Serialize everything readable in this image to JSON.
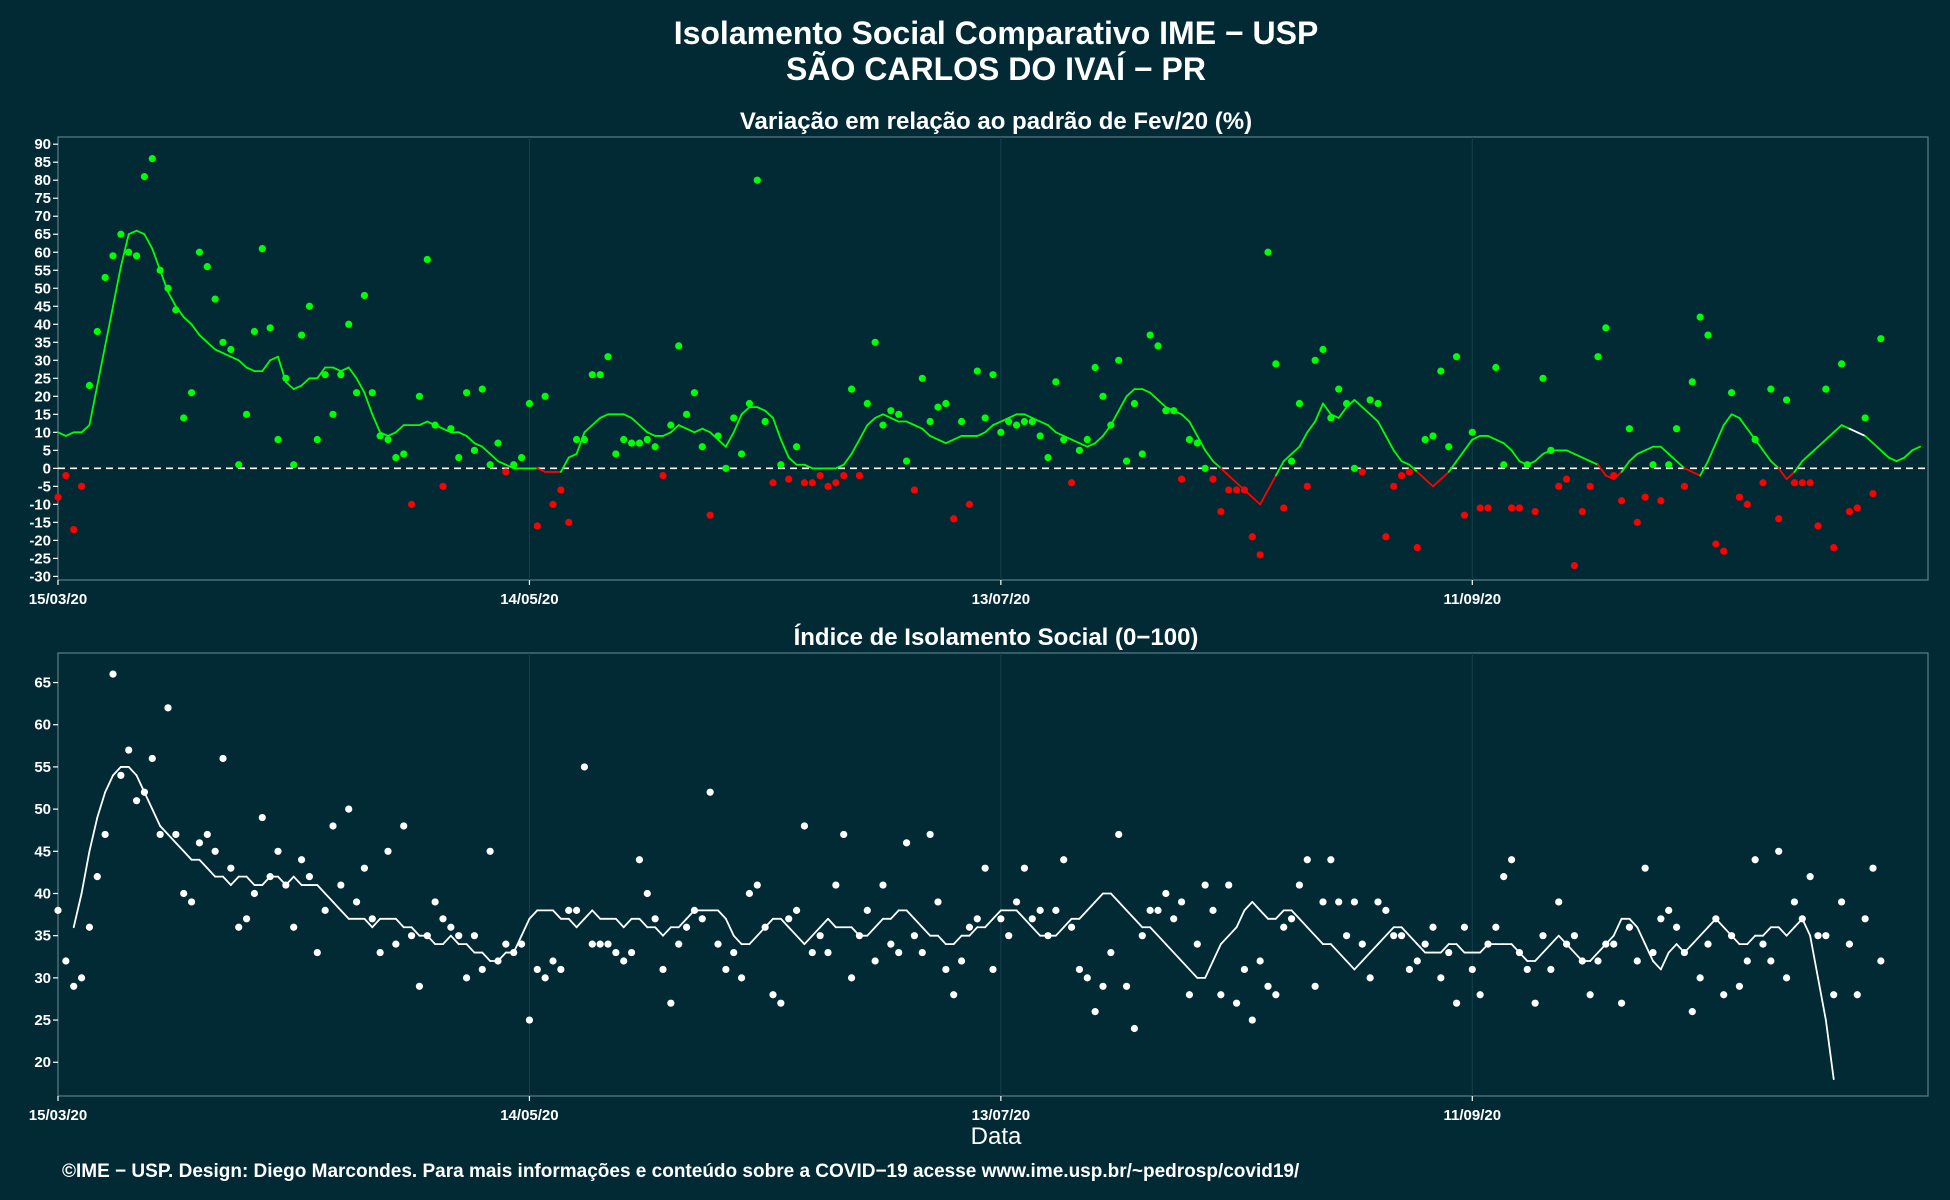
{
  "title_line1": "Isolamento Social Comparativo IME − USP",
  "title_line2": "SÃO CARLOS DO IVAÍ − PR",
  "footer": "©IME − USP. Design: Diego Marcondes. Para mais informações e conteúdo sobre a COVID−19 acesse www.ime.usp.br/~pedrosp/covid19/",
  "colors": {
    "background": "#022a35",
    "positive": "#00ff00",
    "negative": "#ff0000",
    "index": "#ffffff"
  },
  "chart_data": [
    {
      "type": "scatter",
      "title": "Variação em relação ao padrão de Fev/20 (%)",
      "xlabel": "",
      "ylabel": "",
      "x_ticks": [
        "15/03/20",
        "14/05/20",
        "13/07/20",
        "11/09/20"
      ],
      "y_ticks": [
        90,
        85,
        80,
        75,
        70,
        65,
        60,
        55,
        50,
        45,
        40,
        35,
        30,
        25,
        20,
        15,
        10,
        5,
        0,
        -5,
        -10,
        -15,
        -20,
        -25,
        -30
      ],
      "xlim": [
        "2020-03-15",
        "2020-11-08"
      ],
      "ylim": [
        -31,
        92
      ],
      "reference_line": 0,
      "x_start": "2020-03-15",
      "points_daily": [
        -8,
        -2,
        -17,
        -5,
        23,
        38,
        53,
        59,
        65,
        60,
        59,
        81,
        86,
        55,
        50,
        44,
        14,
        21,
        60,
        56,
        47,
        35,
        33,
        1,
        15,
        38,
        61,
        39,
        8,
        25,
        1,
        37,
        45,
        8,
        26,
        15,
        26,
        40,
        21,
        48,
        21,
        9,
        8,
        3,
        4,
        -10,
        20,
        58,
        12,
        -5,
        11,
        3,
        21,
        5,
        22,
        1,
        7,
        -1,
        1,
        3,
        18,
        -16,
        20,
        -10,
        -6,
        -15,
        8,
        8,
        26,
        26,
        31,
        4,
        8,
        7,
        7,
        8,
        6,
        -2,
        12,
        34,
        15,
        21,
        6,
        -13,
        9,
        0,
        14,
        4,
        18,
        80,
        13,
        -4,
        1,
        -3,
        6,
        -4,
        -4,
        -2,
        -5,
        -4,
        -2,
        22,
        -2,
        18,
        35,
        12,
        16,
        15,
        2,
        -6,
        25,
        13,
        17,
        18,
        -14,
        13,
        -10,
        27,
        14,
        26,
        10,
        13,
        12,
        13,
        13,
        9,
        3,
        24,
        8,
        -4,
        5,
        8,
        28,
        20,
        12,
        30,
        2,
        18,
        4,
        37,
        34,
        16,
        16,
        -3,
        8,
        7,
        0,
        -3,
        -12,
        -6,
        -6,
        -6,
        -19,
        -24,
        60,
        29,
        -11,
        2,
        18,
        -5,
        30,
        33,
        14,
        22,
        18,
        0,
        -1,
        19,
        18,
        -19,
        -5,
        -2,
        -1,
        -22,
        8,
        9,
        27,
        6,
        31,
        -13,
        10,
        -11,
        -11,
        28,
        1,
        -11,
        -11,
        1,
        -12,
        25,
        5,
        -5,
        -3,
        -27,
        -12,
        -5,
        31,
        39,
        -2,
        -9,
        11,
        -15,
        -8,
        1,
        -9,
        1,
        11,
        -5,
        24,
        42,
        37,
        -21,
        -23,
        21,
        -8,
        -10,
        8,
        -4,
        22,
        -14,
        19,
        -4,
        -4,
        -4,
        -16,
        22,
        -22,
        29,
        -12,
        -11,
        14,
        -7,
        36
      ],
      "moving_average": {
        "start": "2020-03-15",
        "values": [
          10,
          9,
          10,
          10,
          12,
          23,
          34,
          45,
          56,
          65,
          66,
          65,
          61,
          55,
          49,
          45,
          42,
          40,
          37,
          35,
          33,
          32,
          31,
          30,
          28,
          27,
          27,
          30,
          31,
          24,
          22,
          23,
          25,
          25,
          28,
          28,
          27,
          28,
          25,
          21,
          15,
          10,
          9,
          10,
          12,
          12,
          12,
          13,
          12,
          11,
          10,
          10,
          9,
          7,
          6,
          4,
          2,
          1,
          0,
          0,
          0,
          0,
          -1,
          -1,
          -1,
          3,
          4,
          10,
          12,
          14,
          15,
          15,
          15,
          14,
          12,
          10,
          9,
          9,
          10,
          12,
          11,
          10,
          11,
          10,
          8,
          6,
          10,
          15,
          17,
          17,
          16,
          14,
          8,
          3,
          1,
          1,
          0,
          0,
          0,
          0,
          1,
          4,
          8,
          12,
          14,
          15,
          14,
          13,
          13,
          12,
          11,
          9,
          8,
          7,
          8,
          9,
          9,
          9,
          10,
          12,
          13,
          14,
          15,
          15,
          14,
          13,
          12,
          10,
          9,
          8,
          7,
          6,
          7,
          9,
          12,
          16,
          20,
          22,
          22,
          21,
          19,
          17,
          16,
          15,
          13,
          9,
          5,
          2,
          0,
          -2,
          -4,
          -6,
          -8,
          -10,
          -6,
          -2,
          2,
          4,
          6,
          10,
          13,
          18,
          15,
          14,
          17,
          19,
          17,
          15,
          13,
          9,
          5,
          2,
          1,
          -1,
          -3,
          -5,
          -3,
          -1,
          2,
          5,
          8,
          9,
          9,
          8,
          7,
          5,
          2,
          1,
          2,
          4,
          5,
          5,
          5,
          4,
          3,
          2,
          1,
          -2,
          -3,
          -1,
          2,
          4,
          5,
          6,
          6,
          4,
          2,
          0,
          -1,
          -2,
          2,
          7,
          12,
          15,
          14,
          11,
          8,
          5,
          2,
          0,
          -3,
          -1,
          2,
          4,
          6,
          8,
          10,
          12,
          11,
          10,
          9,
          7,
          5,
          3,
          2,
          3,
          5,
          6
        ]
      }
    },
    {
      "type": "scatter",
      "title": "Índice de Isolamento Social (0−100)",
      "xlabel": "Data",
      "ylabel": "",
      "x_ticks": [
        "15/03/20",
        "14/05/20",
        "13/07/20",
        "11/09/20"
      ],
      "y_ticks": [
        65,
        60,
        55,
        50,
        45,
        40,
        35,
        30,
        25,
        20
      ],
      "xlim": [
        "2020-03-15",
        "2020-11-08"
      ],
      "ylim": [
        16,
        68.5
      ],
      "x_start": "2020-03-15",
      "points_daily": [
        38,
        32,
        29,
        30,
        36,
        42,
        47,
        66,
        54,
        57,
        51,
        52,
        56,
        47,
        62,
        47,
        40,
        39,
        46,
        47,
        45,
        56,
        43,
        36,
        37,
        40,
        49,
        42,
        45,
        41,
        36,
        44,
        42,
        33,
        38,
        48,
        41,
        50,
        39,
        43,
        37,
        33,
        45,
        34,
        48,
        35,
        29,
        35,
        39,
        37,
        36,
        35,
        30,
        35,
        31,
        45,
        32,
        34,
        33,
        34,
        25,
        31,
        30,
        32,
        31,
        38,
        38,
        55,
        34,
        34,
        34,
        33,
        32,
        33,
        44,
        40,
        37,
        31,
        27,
        34,
        36,
        38,
        37,
        52,
        34,
        31,
        33,
        30,
        40,
        41,
        36,
        28,
        27,
        37,
        38,
        48,
        33,
        35,
        33,
        41,
        47,
        30,
        35,
        38,
        32,
        41,
        34,
        33,
        46,
        35,
        33,
        47,
        39,
        31,
        28,
        32,
        36,
        37,
        43,
        31,
        37,
        35,
        39,
        43,
        37,
        38,
        35,
        38,
        44,
        36,
        31,
        30,
        26,
        29,
        33,
        47,
        29,
        24,
        35,
        38,
        38,
        40,
        37,
        39,
        28,
        34,
        41,
        38,
        28,
        41,
        27,
        31,
        25,
        32,
        29,
        28,
        36,
        37,
        41,
        44,
        29,
        39,
        44,
        39,
        35,
        39,
        34,
        30,
        39,
        38,
        35,
        35,
        31,
        32,
        34,
        36,
        30,
        33,
        27,
        36,
        31,
        28,
        34,
        36,
        42,
        44,
        33,
        31,
        27,
        35,
        31,
        39,
        34,
        35,
        32,
        28,
        32,
        34,
        34,
        27,
        36,
        32,
        43,
        33,
        37,
        38,
        36,
        33,
        26,
        30,
        34,
        37,
        28,
        35,
        29,
        32,
        44,
        34,
        32,
        45,
        30,
        39,
        37,
        42,
        35,
        35,
        28,
        39,
        34,
        28,
        37,
        43,
        32
      ],
      "moving_average": {
        "start": "2020-03-17",
        "values": [
          36,
          40,
          45,
          49,
          52,
          54,
          55,
          55,
          54,
          52,
          50,
          48,
          47,
          46,
          45,
          44,
          44,
          43,
          42,
          42,
          41,
          42,
          42,
          41,
          41,
          42,
          42,
          41,
          42,
          41,
          41,
          41,
          40,
          39,
          38,
          37,
          37,
          37,
          36,
          37,
          37,
          37,
          36,
          36,
          35,
          35,
          34,
          34,
          35,
          34,
          34,
          33,
          33,
          32,
          32,
          33,
          33,
          35,
          37,
          38,
          38,
          38,
          37,
          37,
          36,
          37,
          38,
          37,
          37,
          37,
          36,
          37,
          37,
          36,
          36,
          35,
          36,
          36,
          37,
          38,
          38,
          38,
          38,
          37,
          35,
          34,
          34,
          35,
          36,
          37,
          37,
          36,
          35,
          34,
          35,
          36,
          37,
          36,
          36,
          36,
          35,
          35,
          36,
          37,
          37,
          38,
          38,
          37,
          36,
          35,
          35,
          34,
          34,
          35,
          35,
          36,
          36,
          37,
          38,
          38,
          38,
          37,
          36,
          35,
          35,
          35,
          36,
          37,
          37,
          38,
          39,
          40,
          40,
          39,
          38,
          37,
          36,
          36,
          35,
          34,
          33,
          32,
          31,
          30,
          30,
          32,
          34,
          35,
          36,
          38,
          39,
          38,
          37,
          37,
          38,
          38,
          37,
          36,
          35,
          34,
          34,
          33,
          32,
          31,
          32,
          33,
          34,
          35,
          36,
          36,
          35,
          34,
          33,
          33,
          33,
          34,
          34,
          33,
          33,
          33,
          34,
          34,
          34,
          34,
          33,
          32,
          32,
          33,
          34,
          35,
          34,
          33,
          32,
          32,
          33,
          34,
          35,
          37,
          37,
          36,
          34,
          32,
          31,
          33,
          34,
          33,
          34,
          35,
          36,
          37,
          36,
          35,
          34,
          34,
          35,
          35,
          36,
          36,
          35,
          36,
          37,
          35,
          30,
          25,
          18
        ]
      }
    }
  ]
}
